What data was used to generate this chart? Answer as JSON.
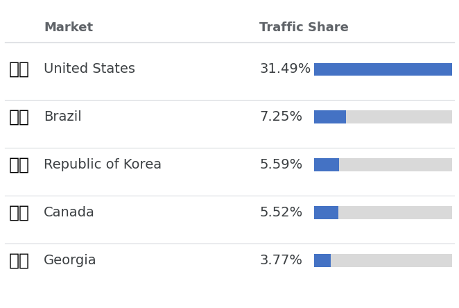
{
  "title_market": "Market",
  "title_traffic": "Traffic Share",
  "countries": [
    {
      "name": "United States",
      "pct": 31.49,
      "pct_str": "31.49%"
    },
    {
      "name": "Brazil",
      "pct": 7.25,
      "pct_str": "7.25%"
    },
    {
      "name": "Republic of Korea",
      "pct": 5.59,
      "pct_str": "5.59%"
    },
    {
      "name": "Canada",
      "pct": 5.52,
      "pct_str": "5.52%"
    },
    {
      "name": "Georgia",
      "pct": 3.77,
      "pct_str": "3.77%"
    }
  ],
  "max_pct": 31.49,
  "bar_color": "#4472c4",
  "bar_bg_color": "#d9d9d9",
  "header_color": "#5f6368",
  "text_color": "#3c4043",
  "bg_color": "#ffffff",
  "divider_color": "#dadce0",
  "header_fontsize": 13,
  "country_fontsize": 14,
  "pct_fontsize": 14,
  "flag_fontsize": 18
}
